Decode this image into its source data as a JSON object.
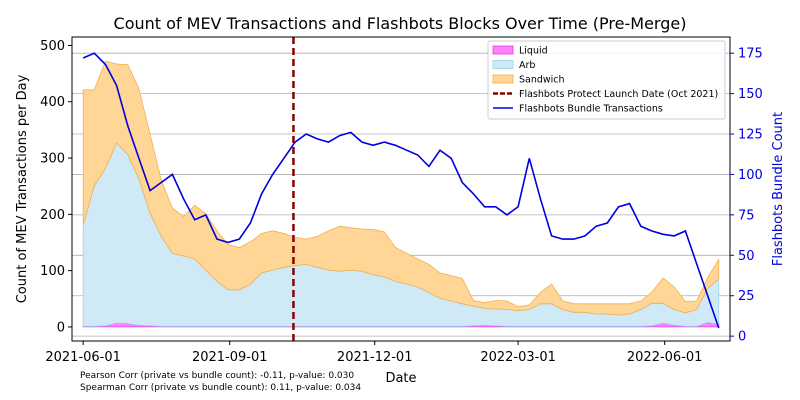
{
  "chart_data": {
    "type": "area",
    "title": "Count of MEV Transactions and Flashbots Blocks Over Time (Pre-Merge)",
    "xlabel": "Date",
    "ylabel": "Count of MEV Transactions per Day",
    "y2label": "Flashbots Bundle Count",
    "x_range": [
      "2021-05-25",
      "2022-07-12"
    ],
    "ylim": [
      -25,
      515
    ],
    "y2lim": [
      -3,
      185
    ],
    "x_ticks": [
      "2021-06-01",
      "2021-09-01",
      "2021-12-01",
      "2022-03-01",
      "2022-06-01"
    ],
    "y_ticks": [
      0,
      100,
      200,
      300,
      400,
      500
    ],
    "y2_ticks": [
      0,
      25,
      50,
      75,
      100,
      125,
      150,
      175
    ],
    "grid": "horizontal",
    "legend_position": "top-right",
    "stacked": true,
    "dates": [
      "2021-06-01",
      "2021-06-08",
      "2021-06-15",
      "2021-06-22",
      "2021-06-29",
      "2021-07-06",
      "2021-07-13",
      "2021-07-20",
      "2021-07-27",
      "2021-08-03",
      "2021-08-10",
      "2021-08-17",
      "2021-08-24",
      "2021-08-31",
      "2021-09-07",
      "2021-09-14",
      "2021-09-21",
      "2021-09-28",
      "2021-10-05",
      "2021-10-12",
      "2021-10-19",
      "2021-10-26",
      "2021-11-02",
      "2021-11-09",
      "2021-11-16",
      "2021-11-23",
      "2021-11-30",
      "2021-12-07",
      "2021-12-14",
      "2021-12-21",
      "2021-12-28",
      "2022-01-04",
      "2022-01-11",
      "2022-01-18",
      "2022-01-25",
      "2022-02-01",
      "2022-02-08",
      "2022-02-15",
      "2022-02-22",
      "2022-03-01",
      "2022-03-08",
      "2022-03-15",
      "2022-03-22",
      "2022-03-29",
      "2022-04-05",
      "2022-04-12",
      "2022-04-19",
      "2022-04-26",
      "2022-05-03",
      "2022-05-10",
      "2022-05-17",
      "2022-05-24",
      "2022-05-31",
      "2022-06-07",
      "2022-06-14",
      "2022-06-21",
      "2022-06-28",
      "2022-07-05"
    ],
    "series": [
      {
        "name": "Liquid",
        "color": "#ff80ff",
        "edge": "#e040e0",
        "values": [
          1,
          1,
          2,
          7,
          6,
          3,
          2,
          1,
          1,
          1,
          1,
          1,
          1,
          1,
          1,
          1,
          1,
          1,
          1,
          1,
          1,
          1,
          1,
          1,
          1,
          1,
          1,
          1,
          1,
          1,
          1,
          1,
          1,
          1,
          1,
          2,
          3,
          2,
          1,
          1,
          1,
          1,
          1,
          1,
          1,
          1,
          1,
          1,
          1,
          1,
          1,
          2,
          7,
          3,
          1,
          1,
          8,
          5
        ]
      },
      {
        "name": "Arb",
        "color": "#cfe9f7",
        "edge": "#9cd3ee",
        "values": [
          180,
          250,
          280,
          320,
          300,
          260,
          200,
          160,
          130,
          125,
          120,
          100,
          80,
          65,
          65,
          75,
          95,
          100,
          105,
          108,
          110,
          105,
          100,
          98,
          100,
          98,
          92,
          88,
          80,
          75,
          70,
          60,
          50,
          45,
          40,
          35,
          30,
          30,
          30,
          28,
          30,
          40,
          40,
          30,
          25,
          25,
          22,
          22,
          20,
          22,
          30,
          40,
          35,
          28,
          24,
          30,
          60,
          80
        ]
      },
      {
        "name": "Sandwich",
        "color": "#ffd696",
        "edge": "#f0b050",
        "values": [
          240,
          170,
          190,
          140,
          160,
          160,
          140,
          100,
          80,
          70,
          95,
          100,
          90,
          80,
          75,
          75,
          70,
          70,
          60,
          50,
          45,
          55,
          70,
          80,
          75,
          75,
          80,
          80,
          60,
          55,
          50,
          50,
          45,
          45,
          45,
          10,
          10,
          15,
          15,
          7,
          8,
          20,
          35,
          15,
          15,
          15,
          18,
          18,
          20,
          18,
          15,
          20,
          45,
          40,
          20,
          15,
          20,
          35
        ]
      },
      {
        "name": "Flashbots Bundle Transactions",
        "axis": "right",
        "color": "#0000dd",
        "values": [
          172,
          175,
          168,
          155,
          130,
          110,
          90,
          95,
          100,
          85,
          72,
          75,
          60,
          58,
          60,
          70,
          88,
          100,
          110,
          120,
          125,
          122,
          120,
          124,
          126,
          120,
          118,
          120,
          118,
          115,
          112,
          105,
          115,
          110,
          95,
          88,
          80,
          80,
          75,
          80,
          110,
          85,
          62,
          60,
          60,
          62,
          68,
          70,
          80,
          82,
          68,
          65,
          63,
          62,
          65,
          45,
          25,
          5
        ]
      }
    ],
    "annotations": [
      {
        "label": "Flashbots Protect Launch Date (Oct 2021)",
        "x": "2021-10-11",
        "style": "vertical-dashed",
        "color": "#8b0000"
      }
    ],
    "captions": [
      "Pearson Corr (private vs bundle count): -0.11, p-value: 0.030",
      "Spearman Corr (private vs bundle count): 0.11, p-value: 0.034"
    ]
  }
}
